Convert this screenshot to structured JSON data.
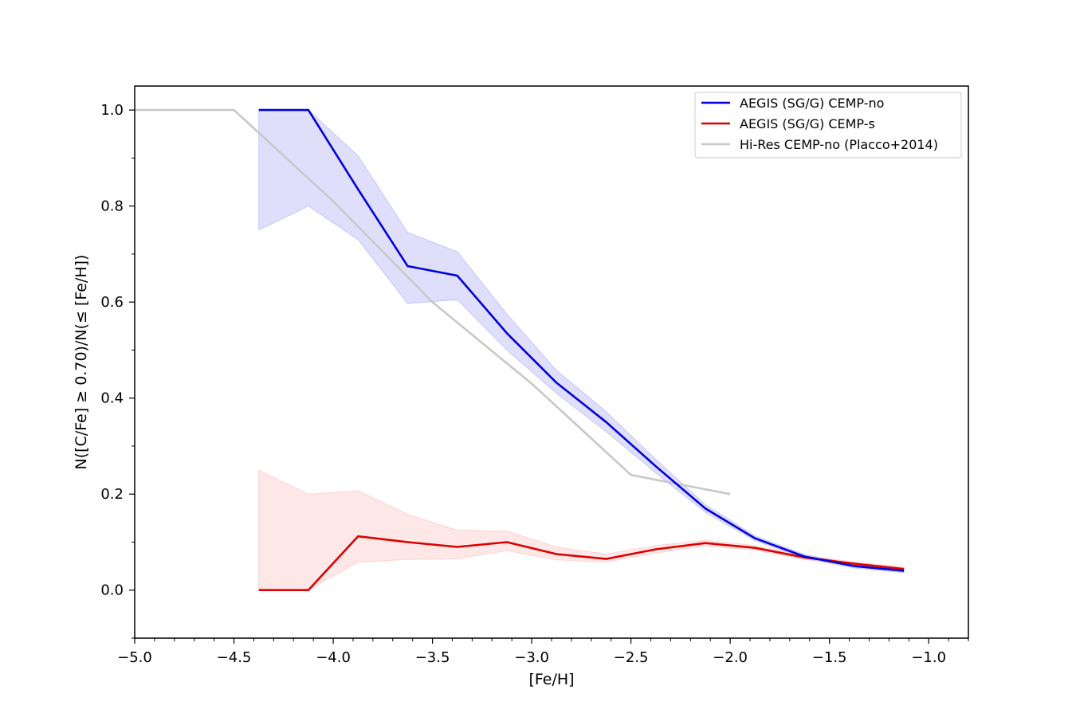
{
  "chart_data": {
    "type": "line",
    "title": "",
    "xlabel": "[Fe/H]",
    "ylabel": "N([C/Fe] ≥ 0.70)/N(≤ [Fe/H])",
    "xlim": [
      -5.0,
      -0.8
    ],
    "ylim": [
      -0.1,
      1.05
    ],
    "grid": false,
    "legend_position": "top-right",
    "x_ticks": [
      -5.0,
      -4.5,
      -4.0,
      -3.5,
      -3.0,
      -2.5,
      -2.0,
      -1.5,
      -1.0
    ],
    "x_tick_labels": [
      "−5.0",
      "−4.5",
      "−4.0",
      "−3.5",
      "−3.0",
      "−2.5",
      "−2.0",
      "−1.5",
      "−1.0"
    ],
    "y_ticks": [
      0.0,
      0.2,
      0.4,
      0.6,
      0.8,
      1.0
    ],
    "y_tick_labels": [
      "0.0",
      "0.2",
      "0.4",
      "0.6",
      "0.8",
      "1.0"
    ],
    "series": [
      {
        "name": "AEGIS (SG/G) CEMP-no",
        "color": "#0000dd",
        "band_color": "#8080f0",
        "x": [
          -4.375,
          -4.125,
          -3.875,
          -3.625,
          -3.375,
          -3.125,
          -2.875,
          -2.625,
          -2.375,
          -2.125,
          -1.875,
          -1.625,
          -1.375,
          -1.125
        ],
        "y": [
          1.0,
          1.0,
          0.835,
          0.675,
          0.655,
          0.535,
          0.432,
          0.35,
          0.258,
          0.17,
          0.108,
          0.07,
          0.05,
          0.04
        ],
        "upper": [
          1.0,
          1.0,
          0.905,
          0.745,
          0.705,
          0.575,
          0.458,
          0.372,
          0.272,
          0.178,
          0.113,
          0.074,
          0.054,
          0.044
        ],
        "lower": [
          0.75,
          0.8,
          0.73,
          0.597,
          0.605,
          0.5,
          0.41,
          0.33,
          0.244,
          0.162,
          0.103,
          0.066,
          0.046,
          0.036
        ]
      },
      {
        "name": "AEGIS (SG/G) CEMP-s",
        "color": "#dd0000",
        "band_color": "#f8a0a0",
        "x": [
          -4.375,
          -4.125,
          -3.875,
          -3.625,
          -3.375,
          -3.125,
          -2.875,
          -2.625,
          -2.375,
          -2.125,
          -1.875,
          -1.625,
          -1.375,
          -1.125
        ],
        "y": [
          0.0,
          0.0,
          0.112,
          0.1,
          0.09,
          0.1,
          0.075,
          0.065,
          0.085,
          0.098,
          0.088,
          0.068,
          0.055,
          0.044
        ],
        "upper": [
          0.25,
          0.2,
          0.207,
          0.158,
          0.125,
          0.123,
          0.09,
          0.075,
          0.093,
          0.104,
          0.093,
          0.072,
          0.059,
          0.048
        ],
        "lower": [
          0.0,
          0.0,
          0.058,
          0.064,
          0.065,
          0.082,
          0.063,
          0.058,
          0.077,
          0.092,
          0.083,
          0.064,
          0.051,
          0.04
        ]
      },
      {
        "name": "Hi-Res CEMP-no (Placco+2014)",
        "color": "#c8c8c8",
        "x": [
          -5.0,
          -4.5,
          -4.0,
          -3.5,
          -3.0,
          -2.5,
          -2.0
        ],
        "y": [
          1.0,
          1.0,
          0.81,
          0.6,
          0.43,
          0.24,
          0.2
        ]
      }
    ]
  }
}
